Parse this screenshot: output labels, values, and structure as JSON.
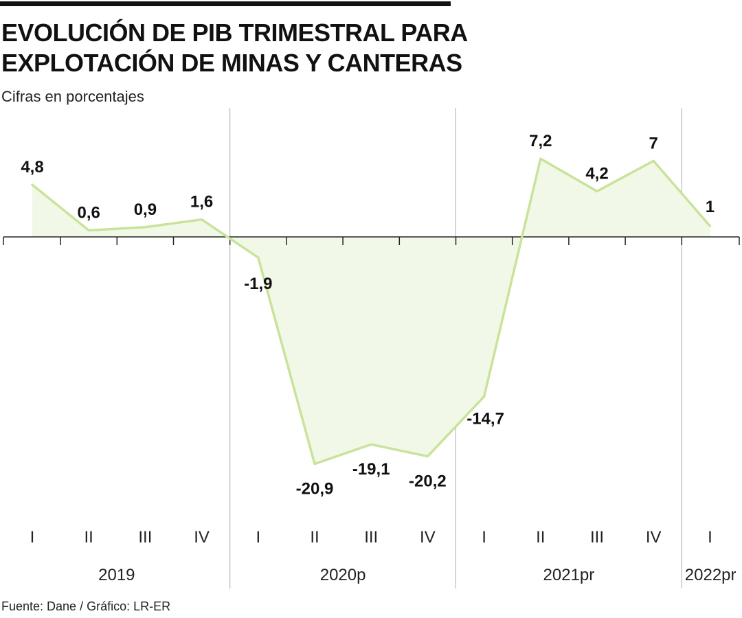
{
  "title_line1": "EVOLUCIÓN DE PIB TRIMESTRAL PARA",
  "title_line2": "EXPLOTACIÓN DE MINAS Y CANTERAS",
  "subtitle": "Cifras en porcentajes",
  "source": "Fuente: Dane / Gráfico: LR-ER",
  "colors": {
    "line": "#c9e39a",
    "fill": "#f1f8e7",
    "axis": "#222222",
    "divider": "#aaaaaa"
  },
  "chart_data": {
    "type": "area",
    "categories": [
      "I",
      "II",
      "III",
      "IV",
      "I",
      "II",
      "III",
      "IV",
      "I",
      "II",
      "III",
      "IV",
      "I"
    ],
    "values": [
      4.8,
      0.6,
      0.9,
      1.6,
      -1.9,
      -20.9,
      -19.1,
      -20.2,
      -14.7,
      7.2,
      4.2,
      7,
      1
    ],
    "value_labels": [
      "4,8",
      "0,6",
      "0,9",
      "1,6",
      "-1,9",
      "-20,9",
      "-19,1",
      "-20,2",
      "-14,7",
      "7,2",
      "4,2",
      "7",
      "1"
    ],
    "year_groups": [
      {
        "label": "2019",
        "count": 4
      },
      {
        "label": "2020p",
        "count": 4
      },
      {
        "label": "2021pr",
        "count": 4
      },
      {
        "label": "2022pr",
        "count": 1
      }
    ],
    "ylim": [
      -25,
      10
    ],
    "grid": false,
    "legend": "none"
  }
}
